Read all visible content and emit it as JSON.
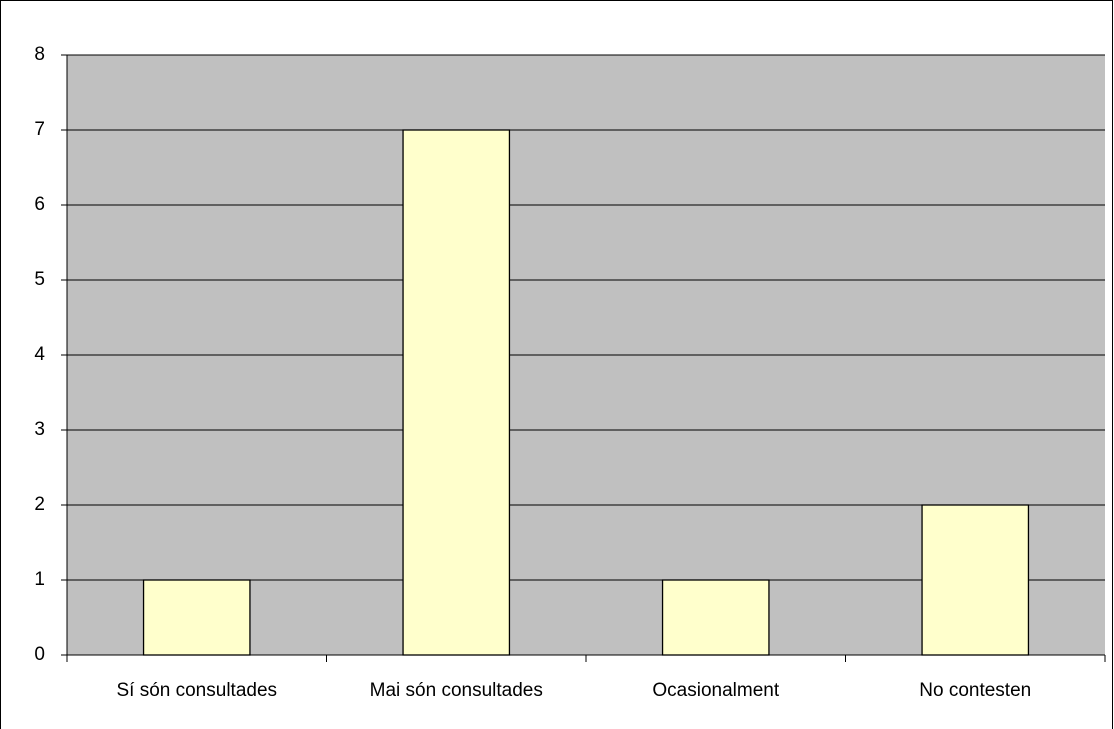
{
  "chart_data": {
    "type": "bar",
    "categories": [
      "Sí són consultades",
      "Mai són consultades",
      "Ocasionalment",
      "No contesten"
    ],
    "values": [
      1,
      7,
      1,
      2
    ],
    "color": "#ffffcc",
    "plot_background": "#c0c0c0",
    "ylim": [
      0,
      8
    ],
    "yticks": [
      0,
      1,
      2,
      3,
      4,
      5,
      6,
      7,
      8
    ],
    "grid": true
  }
}
